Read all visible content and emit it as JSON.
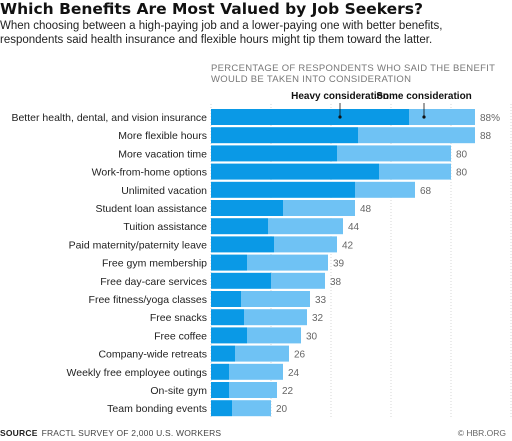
{
  "title": "Which Benefits Are Most Valued by Job Seekers?",
  "subtitle": "When choosing between a high-paying job and a lower-paying one with better benefits, respondents said health insurance and flexible hours might tip them toward the latter.",
  "source_label": "SOURCE",
  "source_text": "FRACTL SURVEY OF 2,000 U.S. WORKERS",
  "credit": "© HBR.ORG",
  "colors": {
    "heavy": "#0a99e6",
    "some": "#6fc2f4",
    "grid": "#d7d7d7",
    "value_text": "#666666"
  },
  "chart_data": {
    "type": "bar",
    "orientation": "horizontal",
    "stacked": true,
    "header": "PERCENTAGE OF RESPONDENTS WHO SAID THE BENEFIT WOULD BE TAKEN INTO CONSIDERATION",
    "header_lines": [
      "PERCENTAGE OF RESPONDENTS WHO SAID THE BENEFIT",
      "WOULD BE TAKEN INTO CONSIDERATION"
    ],
    "xlim": [
      0,
      100
    ],
    "grid": true,
    "legend_placement": "top",
    "categories": [
      "Better health, dental, and vision insurance",
      "More flexible hours",
      "More vacation time",
      "Work-from-home options",
      "Unlimited vacation",
      "Student loan assistance",
      "Tuition assistance",
      "Paid maternity/paternity leave",
      "Free gym membership",
      "Free day-care services",
      "Free fitness/yoga classes",
      "Free snacks",
      "Free coffee",
      "Company-wide retreats",
      "Weekly free employee outings",
      "On-site gym",
      "Team bonding events"
    ],
    "series": [
      {
        "name": "Heavy consideration",
        "values": [
          66,
          49,
          42,
          56,
          48,
          24,
          19,
          21,
          12,
          20,
          10,
          11,
          12,
          8,
          6,
          6,
          7
        ]
      },
      {
        "name": "Some consideration",
        "values": [
          22,
          39,
          38,
          24,
          20,
          24,
          25,
          21,
          27,
          18,
          23,
          21,
          18,
          18,
          18,
          16,
          13
        ]
      }
    ],
    "totals": [
      88,
      88,
      80,
      80,
      68,
      48,
      44,
      42,
      39,
      38,
      33,
      32,
      30,
      26,
      24,
      22,
      20
    ],
    "total_labels": [
      "88%",
      "88",
      "80",
      "80",
      "68",
      "48",
      "44",
      "42",
      "39",
      "38",
      "33",
      "32",
      "30",
      "26",
      "24",
      "22",
      "20"
    ]
  }
}
